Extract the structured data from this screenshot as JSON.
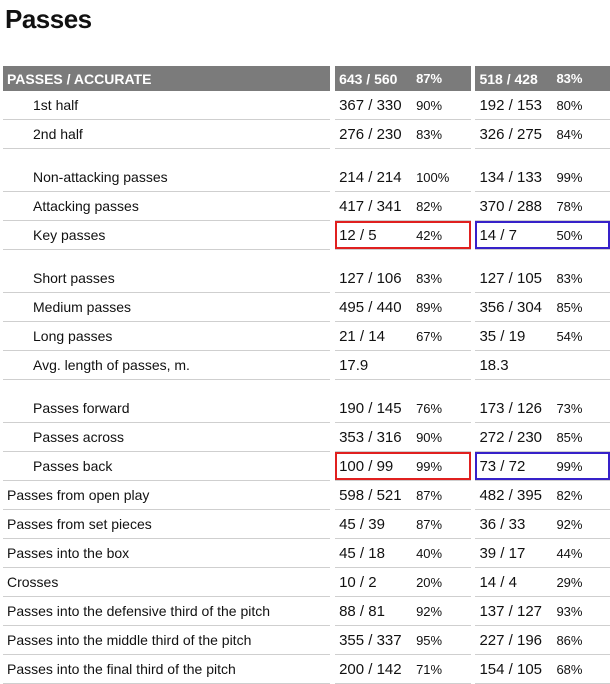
{
  "title": "Passes",
  "header": {
    "label": "PASSES / ACCURATE",
    "team1": {
      "value": "643 / 560",
      "pct": "87%"
    },
    "team2": {
      "value": "518 / 428",
      "pct": "83%"
    }
  },
  "highlight_colors": {
    "team1": "#e0201f",
    "team2": "#3621c9"
  },
  "rows": [
    {
      "label": "1st half",
      "t1v": "367 / 330",
      "t1p": "90%",
      "t2v": "192 / 153",
      "t2p": "80%"
    },
    {
      "label": "2nd half",
      "t1v": "276 / 230",
      "t1p": "83%",
      "t2v": "326 / 275",
      "t2p": "84%"
    },
    {
      "label": "Non-attacking passes",
      "t1v": "214 / 214",
      "t1p": "100%",
      "t2v": "134 / 133",
      "t2p": "99%"
    },
    {
      "label": "Attacking passes",
      "t1v": "417 / 341",
      "t1p": "82%",
      "t2v": "370 / 288",
      "t2p": "78%"
    },
    {
      "label": "Key passes",
      "t1v": "12 / 5",
      "t1p": "42%",
      "t2v": "14 / 7",
      "t2p": "50%"
    },
    {
      "label": "Short passes",
      "t1v": "127 / 106",
      "t1p": "83%",
      "t2v": "127 / 105",
      "t2p": "83%"
    },
    {
      "label": "Medium passes",
      "t1v": "495 / 440",
      "t1p": "89%",
      "t2v": "356 / 304",
      "t2p": "85%"
    },
    {
      "label": "Long passes",
      "t1v": "21 / 14",
      "t1p": "67%",
      "t2v": "35 / 19",
      "t2p": "54%"
    },
    {
      "label": "Avg. length of passes, m.",
      "t1v": "17.9",
      "t1p": "",
      "t2v": "18.3",
      "t2p": ""
    },
    {
      "label": "Passes forward",
      "t1v": "190 / 145",
      "t1p": "76%",
      "t2v": "173 / 126",
      "t2p": "73%"
    },
    {
      "label": "Passes across",
      "t1v": "353 / 316",
      "t1p": "90%",
      "t2v": "272 / 230",
      "t2p": "85%"
    },
    {
      "label": "Passes back",
      "t1v": "100 / 99",
      "t1p": "99%",
      "t2v": "73 / 72",
      "t2p": "99%"
    },
    {
      "label": "Passes from open play",
      "t1v": "598 / 521",
      "t1p": "87%",
      "t2v": "482 / 395",
      "t2p": "82%"
    },
    {
      "label": "Passes from set pieces",
      "t1v": "45 / 39",
      "t1p": "87%",
      "t2v": "36 / 33",
      "t2p": "92%"
    },
    {
      "label": "Passes into the box",
      "t1v": "45 / 18",
      "t1p": "40%",
      "t2v": "39 / 17",
      "t2p": "44%"
    },
    {
      "label": "Crosses",
      "t1v": "10 / 2",
      "t1p": "20%",
      "t2v": "14 / 4",
      "t2p": "29%"
    },
    {
      "label": "Passes into the defensive third of the pitch",
      "t1v": "88 / 81",
      "t1p": "92%",
      "t2v": "137 / 127",
      "t2p": "93%"
    },
    {
      "label": "Passes into the middle third of the pitch",
      "t1v": "355 / 337",
      "t1p": "95%",
      "t2v": "227 / 196",
      "t2p": "86%"
    },
    {
      "label": "Passes into the final third of the pitch",
      "t1v": "200 / 142",
      "t1p": "71%",
      "t2v": "154 / 105",
      "t2p": "68%"
    }
  ]
}
